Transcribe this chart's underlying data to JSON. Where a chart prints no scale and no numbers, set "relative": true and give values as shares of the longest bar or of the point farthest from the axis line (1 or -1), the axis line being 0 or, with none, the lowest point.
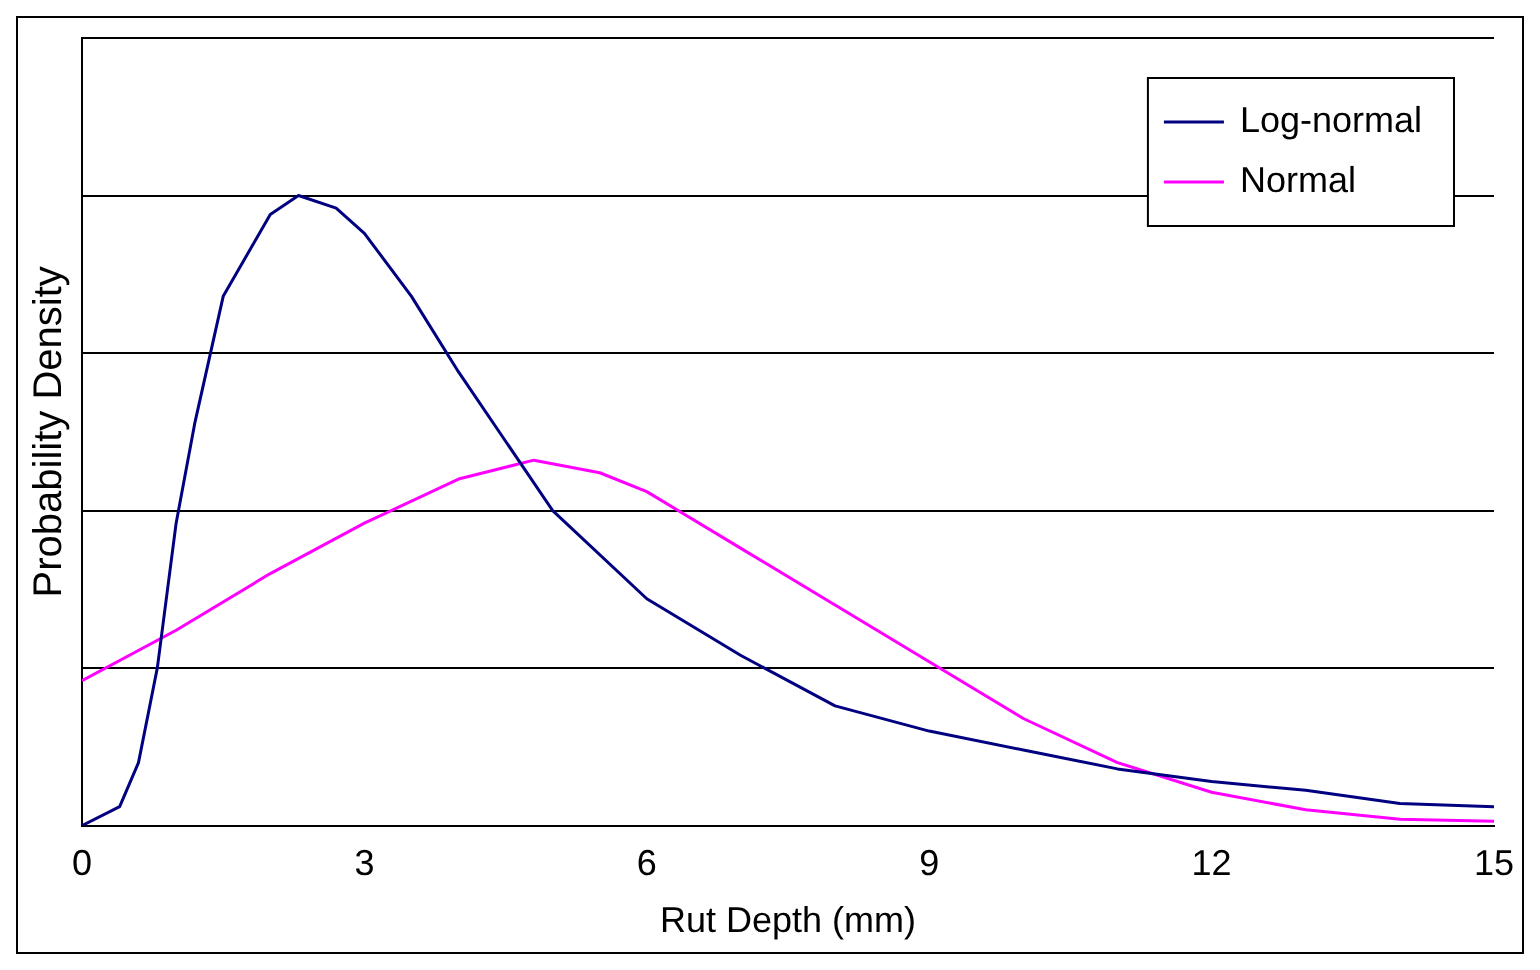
{
  "chart_data": {
    "type": "line",
    "relative": true,
    "xlabel": "Rut Depth (mm)",
    "ylabel": "Probability Density",
    "xlim": [
      0,
      15
    ],
    "xticks": [
      0,
      3,
      6,
      9,
      12,
      15
    ],
    "grid": "y",
    "legend": "top right",
    "marker": "none",
    "series": [
      {
        "name": "Log-normal",
        "color": "#000080",
        "x": [
          0,
          0.4,
          0.6,
          0.8,
          1,
          1.2,
          1.5,
          2,
          2.3,
          2.7,
          3,
          3.5,
          4,
          4.5,
          5,
          6,
          7,
          8,
          9,
          10,
          11,
          12,
          13,
          14,
          15
        ],
        "values": [
          0,
          0.03,
          0.1,
          0.25,
          0.48,
          0.64,
          0.84,
          0.97,
          1,
          0.98,
          0.94,
          0.84,
          0.72,
          0.61,
          0.5,
          0.36,
          0.27,
          0.19,
          0.15,
          0.12,
          0.09,
          0.07,
          0.056,
          0.035,
          0.03
        ]
      },
      {
        "name": "Normal",
        "color": "#ff00ff",
        "x": [
          0,
          1,
          2,
          3,
          4,
          4.8,
          5.5,
          6,
          7,
          8,
          9,
          10,
          11,
          12,
          13,
          14,
          15
        ],
        "values": [
          0.23,
          0.31,
          0.4,
          0.48,
          0.55,
          0.58,
          0.56,
          0.53,
          0.44,
          0.35,
          0.26,
          0.17,
          0.1,
          0.053,
          0.025,
          0.01,
          0.007
        ]
      }
    ]
  }
}
